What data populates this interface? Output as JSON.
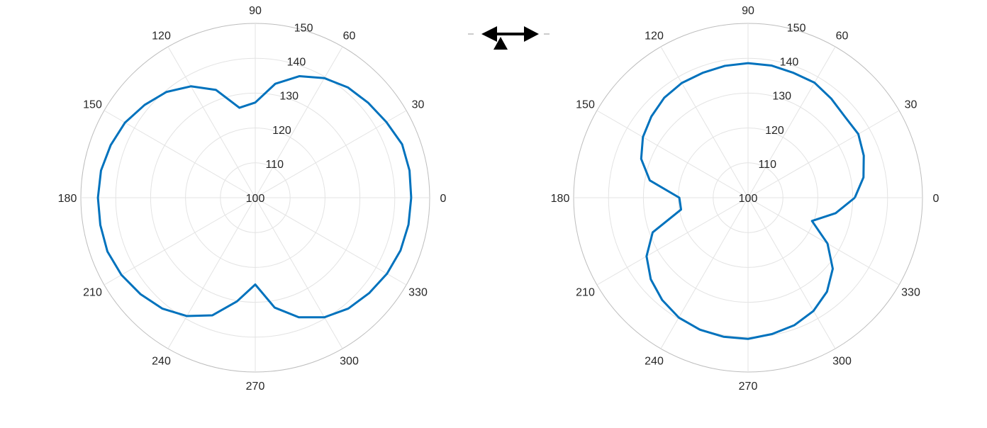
{
  "colors": {
    "series": "#0072BD",
    "grid": "#e3e3e3",
    "outer": "#bdbdbd",
    "text": "#262626"
  },
  "icon": {
    "name": "double-arrow-with-triangle-icon"
  },
  "chart_data": [
    {
      "type": "polar-line",
      "theta_ticks": [
        "0",
        "30",
        "60",
        "90",
        "120",
        "150",
        "180",
        "210",
        "240",
        "270",
        "300",
        "330"
      ],
      "r_ticks": [
        "100",
        "110",
        "120",
        "130",
        "140",
        "150"
      ],
      "rlim": [
        100,
        150
      ],
      "grid": true,
      "theta_deg": [
        0,
        10,
        20,
        30,
        40,
        50,
        60,
        70,
        80,
        90,
        100,
        110,
        120,
        130,
        140,
        150,
        160,
        170,
        180,
        190,
        200,
        210,
        220,
        230,
        240,
        250,
        260,
        270,
        280,
        290,
        300,
        310,
        320,
        330,
        340,
        350
      ],
      "r": [
        144.7,
        144.9,
        144.8,
        143.4,
        142.3,
        141.3,
        139.6,
        137.1,
        133.2,
        127.3,
        126.2,
        132.9,
        136.9,
        139.6,
        141.4,
        143.1,
        144.1,
        144.9,
        145.1,
        145.1,
        145.1,
        144.3,
        143.0,
        141.5,
        139.2,
        135.9,
        130.2,
        124.9,
        132.0,
        136.5,
        139.6,
        141.5,
        142.6,
        143.6,
        144.3,
        144.6
      ]
    },
    {
      "type": "polar-line",
      "theta_ticks": [
        "0",
        "30",
        "60",
        "90",
        "120",
        "150",
        "180",
        "210",
        "240",
        "270",
        "300",
        "330"
      ],
      "r_ticks": [
        "100",
        "110",
        "120",
        "130",
        "140",
        "150"
      ],
      "rlim": [
        100,
        150
      ],
      "grid": true,
      "theta_deg": [
        0,
        10,
        20,
        30,
        40,
        50,
        60,
        70,
        80,
        90,
        100,
        110,
        120,
        130,
        140,
        150,
        160,
        170,
        180,
        190,
        200,
        210,
        220,
        230,
        240,
        250,
        260,
        270,
        280,
        290,
        300,
        310,
        320,
        330,
        340,
        350
      ],
      "r": [
        130.6,
        133.6,
        135.3,
        136.5,
        136.2,
        137.1,
        138.1,
        138.1,
        138.5,
        138.6,
        138.4,
        138.1,
        138.0,
        137.4,
        136.2,
        134.8,
        132.6,
        128.6,
        119.7,
        119.5,
        129.1,
        133.6,
        136.4,
        138.3,
        139.7,
        140.3,
        140.5,
        140.5,
        139.7,
        138.9,
        137.5,
        135.2,
        131.7,
        126.3,
        119.5,
        125.5
      ]
    }
  ]
}
